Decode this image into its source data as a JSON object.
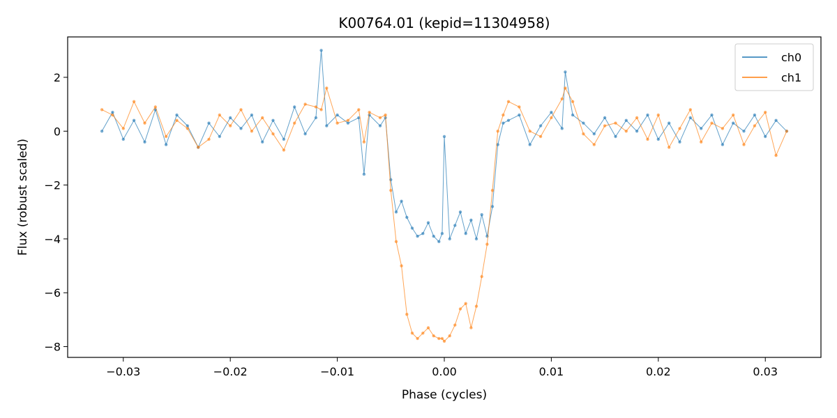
{
  "chart_data": {
    "type": "line",
    "title": "K00764.01 (kepid=11304958)",
    "xlabel": "Phase (cycles)",
    "ylabel": "Flux (robust scaled)",
    "xlim": [
      -0.0352,
      0.0352
    ],
    "ylim": [
      -8.4,
      3.5
    ],
    "xticks": [
      -0.03,
      -0.02,
      -0.01,
      0.0,
      0.01,
      0.02,
      0.03
    ],
    "xtick_labels": [
      "−0.03",
      "−0.02",
      "−0.01",
      "0.00",
      "0.01",
      "0.02",
      "0.03"
    ],
    "yticks": [
      2,
      0,
      -2,
      -4,
      -6,
      -8
    ],
    "ytick_labels": [
      "2",
      "0",
      "−2",
      "−4",
      "−6",
      "−8"
    ],
    "grid": false,
    "legend_position": "top-right",
    "series": [
      {
        "name": "ch0",
        "color": "#1f77b4",
        "x": [
          -0.032,
          -0.031,
          -0.03,
          -0.029,
          -0.028,
          -0.027,
          -0.026,
          -0.025,
          -0.024,
          -0.023,
          -0.022,
          -0.021,
          -0.02,
          -0.019,
          -0.018,
          -0.017,
          -0.016,
          -0.015,
          -0.014,
          -0.013,
          -0.012,
          -0.0115,
          -0.011,
          -0.01,
          -0.009,
          -0.008,
          -0.0075,
          -0.007,
          -0.006,
          -0.0055,
          -0.005,
          -0.0045,
          -0.004,
          -0.0035,
          -0.003,
          -0.0025,
          -0.002,
          -0.0015,
          -0.001,
          -0.0005,
          -0.0002,
          0.0,
          0.0005,
          0.001,
          0.0015,
          0.002,
          0.0025,
          0.003,
          0.0035,
          0.004,
          0.0045,
          0.005,
          0.0055,
          0.006,
          0.007,
          0.008,
          0.009,
          0.01,
          0.011,
          0.0113,
          0.012,
          0.013,
          0.014,
          0.015,
          0.016,
          0.017,
          0.018,
          0.019,
          0.02,
          0.021,
          0.022,
          0.023,
          0.024,
          0.025,
          0.026,
          0.027,
          0.028,
          0.029,
          0.03,
          0.031,
          0.032
        ],
        "y": [
          0.0,
          0.7,
          -0.3,
          0.4,
          -0.4,
          0.8,
          -0.5,
          0.6,
          0.2,
          -0.6,
          0.3,
          -0.2,
          0.5,
          0.1,
          0.6,
          -0.4,
          0.4,
          -0.3,
          0.9,
          -0.1,
          0.5,
          3.0,
          0.2,
          0.6,
          0.3,
          0.5,
          -1.6,
          0.6,
          0.2,
          0.5,
          -1.8,
          -3.0,
          -2.6,
          -3.2,
          -3.6,
          -3.9,
          -3.8,
          -3.4,
          -3.9,
          -4.1,
          -3.8,
          -0.2,
          -4.0,
          -3.5,
          -3.0,
          -3.8,
          -3.3,
          -4.0,
          -3.1,
          -3.9,
          -2.8,
          -0.5,
          0.3,
          0.4,
          0.6,
          -0.5,
          0.2,
          0.7,
          0.1,
          2.2,
          0.6,
          0.3,
          -0.1,
          0.5,
          -0.2,
          0.4,
          0.0,
          0.6,
          -0.3,
          0.3,
          -0.4,
          0.5,
          0.1,
          0.6,
          -0.5,
          0.3,
          0.0,
          0.6,
          -0.2,
          0.4,
          0.0
        ]
      },
      {
        "name": "ch1",
        "color": "#ff7f0e",
        "x": [
          -0.032,
          -0.031,
          -0.03,
          -0.029,
          -0.028,
          -0.027,
          -0.026,
          -0.025,
          -0.024,
          -0.023,
          -0.022,
          -0.021,
          -0.02,
          -0.019,
          -0.018,
          -0.017,
          -0.016,
          -0.015,
          -0.014,
          -0.013,
          -0.012,
          -0.0115,
          -0.011,
          -0.01,
          -0.009,
          -0.008,
          -0.0075,
          -0.007,
          -0.006,
          -0.0055,
          -0.005,
          -0.0045,
          -0.004,
          -0.0035,
          -0.003,
          -0.0025,
          -0.002,
          -0.0015,
          -0.001,
          -0.0005,
          -0.0002,
          0.0,
          0.0005,
          0.001,
          0.0015,
          0.002,
          0.0025,
          0.003,
          0.0035,
          0.004,
          0.0045,
          0.005,
          0.0055,
          0.006,
          0.007,
          0.008,
          0.009,
          0.01,
          0.011,
          0.0113,
          0.012,
          0.013,
          0.014,
          0.015,
          0.016,
          0.017,
          0.018,
          0.019,
          0.02,
          0.021,
          0.022,
          0.023,
          0.024,
          0.025,
          0.026,
          0.027,
          0.028,
          0.029,
          0.03,
          0.031,
          0.032
        ],
        "y": [
          0.8,
          0.6,
          0.1,
          1.1,
          0.3,
          0.9,
          -0.2,
          0.4,
          0.1,
          -0.6,
          -0.3,
          0.6,
          0.2,
          0.8,
          0.0,
          0.5,
          -0.1,
          -0.7,
          0.3,
          1.0,
          0.9,
          0.8,
          1.6,
          0.3,
          0.4,
          0.8,
          -0.4,
          0.7,
          0.5,
          0.6,
          -2.2,
          -4.1,
          -5.0,
          -6.8,
          -7.5,
          -7.7,
          -7.5,
          -7.3,
          -7.6,
          -7.7,
          -7.7,
          -7.8,
          -7.6,
          -7.2,
          -6.6,
          -6.4,
          -7.3,
          -6.5,
          -5.4,
          -4.2,
          -2.2,
          0.0,
          0.6,
          1.1,
          0.9,
          0.0,
          -0.2,
          0.5,
          1.2,
          1.6,
          1.1,
          -0.1,
          -0.5,
          0.2,
          0.3,
          0.0,
          0.5,
          -0.3,
          0.6,
          -0.6,
          0.1,
          0.8,
          -0.4,
          0.3,
          0.1,
          0.6,
          -0.5,
          0.2,
          0.7,
          -0.9,
          0.0
        ]
      }
    ]
  }
}
